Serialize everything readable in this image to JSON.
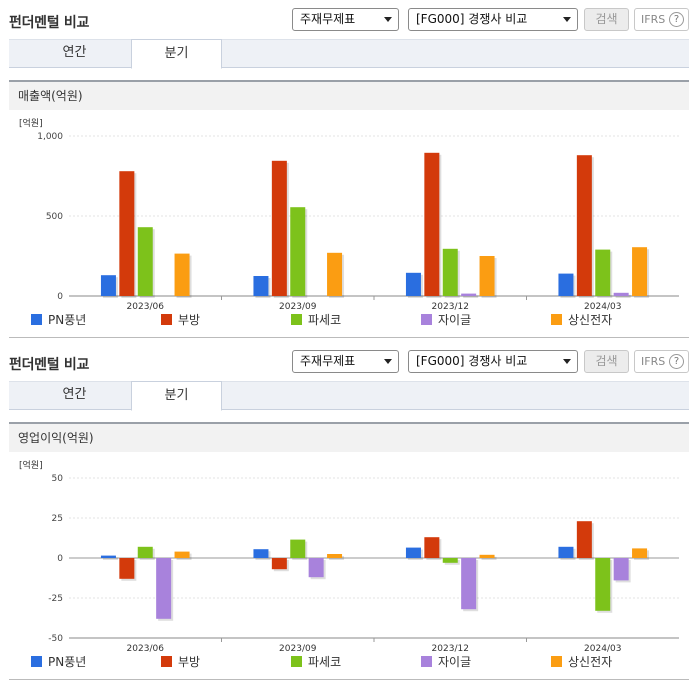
{
  "colors": {
    "pn": "#2a6ee0",
    "bu": "#d33a0b",
    "pa": "#7dc21b",
    "ja": "#a882dc",
    "sa": "#fb9d12"
  },
  "sections": [
    {
      "title": "펀더멘털 비교",
      "select1": "주재무제표",
      "select2": "[FG000] 경쟁사 비교",
      "search_label": "검색",
      "ifrs_label": "IFRS",
      "help_glyph": "?",
      "tabs": [
        "연간",
        "분기"
      ],
      "chart_title": "매출액(억원)"
    },
    {
      "title": "펀더멘털 비교",
      "select1": "주재무제표",
      "select2": "[FG000] 경쟁사 비교",
      "search_label": "검색",
      "ifrs_label": "IFRS",
      "help_glyph": "?",
      "tabs": [
        "연간",
        "분기"
      ],
      "chart_title": "영업이익(억원)"
    }
  ],
  "chart_data": [
    {
      "type": "bar",
      "title": "매출액(억원)",
      "unit_label": "[억원]",
      "categories": [
        "2023/06",
        "2023/09",
        "2023/12",
        "2024/03"
      ],
      "ylim": [
        0,
        1000
      ],
      "yticks": [
        0,
        500,
        1000
      ],
      "ytick_labels": [
        "0",
        "500",
        "1,000"
      ],
      "legend": "bottom",
      "series": [
        {
          "name": "PN풍년",
          "values": [
            130,
            125,
            145,
            140
          ]
        },
        {
          "name": "부방",
          "values": [
            780,
            845,
            895,
            880
          ]
        },
        {
          "name": "파세코",
          "values": [
            430,
            555,
            295,
            290
          ]
        },
        {
          "name": "자이글",
          "values": [
            0,
            0,
            15,
            20
          ]
        },
        {
          "name": "상신전자",
          "values": [
            265,
            270,
            250,
            305
          ]
        }
      ]
    },
    {
      "type": "bar",
      "title": "영업이익(억원)",
      "unit_label": "[억원]",
      "categories": [
        "2023/06",
        "2023/09",
        "2023/12",
        "2024/03"
      ],
      "ylim": [
        -50,
        50
      ],
      "yticks": [
        -50,
        -25,
        0,
        25,
        50
      ],
      "ytick_labels": [
        "-50",
        "-25",
        "0",
        "25",
        "50"
      ],
      "legend": "bottom",
      "series": [
        {
          "name": "PN풍년",
          "values": [
            1.5,
            5.5,
            6.5,
            7
          ]
        },
        {
          "name": "부방",
          "values": [
            -13,
            -7,
            13,
            23
          ]
        },
        {
          "name": "파세코",
          "values": [
            7,
            11.5,
            -3,
            -33
          ]
        },
        {
          "name": "자이글",
          "values": [
            -38,
            -12,
            -32,
            -14
          ]
        },
        {
          "name": "상신전자",
          "values": [
            4,
            2.5,
            2,
            6
          ]
        }
      ]
    }
  ]
}
